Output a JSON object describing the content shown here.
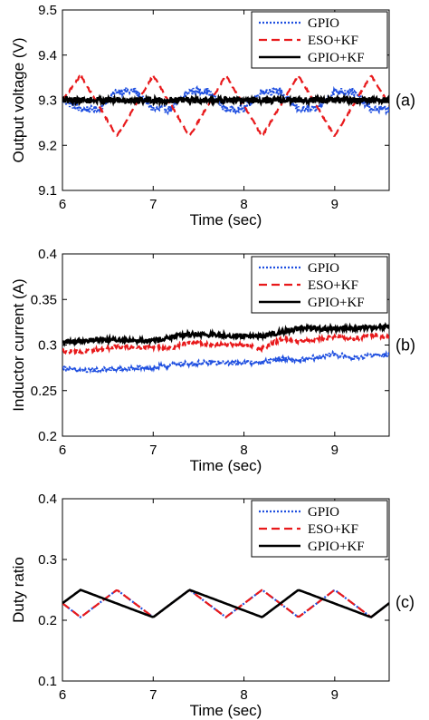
{
  "chart_data": [
    {
      "type": "line",
      "panel_label": "(a)",
      "xlabel": "Time (sec)",
      "ylabel": "Output voltage (V)",
      "xlim": [
        6,
        9.6
      ],
      "ylim": [
        9.1,
        9.5
      ],
      "xticks": [
        "6",
        "7",
        "8",
        "9"
      ],
      "yticks": [
        "9.1",
        "9.2",
        "9.3",
        "9.4",
        "9.5"
      ],
      "legend_position": "top-right",
      "series": [
        {
          "name": "GPIO",
          "color": "#1f4fe0",
          "style": "dotted",
          "x": [
            6.0,
            6.0,
            6.2,
            6.4,
            6.6,
            6.8,
            7.0,
            7.2,
            7.4,
            7.6,
            7.8,
            8.0,
            8.2,
            8.4,
            8.6,
            8.8,
            9.0,
            9.2,
            9.4,
            9.6
          ],
          "y": [
            9.3,
            9.3,
            9.28,
            9.28,
            9.32,
            9.32,
            9.28,
            9.28,
            9.32,
            9.32,
            9.28,
            9.28,
            9.32,
            9.32,
            9.28,
            9.28,
            9.32,
            9.32,
            9.28,
            9.28
          ]
        },
        {
          "name": "ESO+KF",
          "color": "#e8191b",
          "style": "dashed",
          "x": [
            6.0,
            6.2,
            6.6,
            7.0,
            7.4,
            7.8,
            8.2,
            8.6,
            9.0,
            9.4,
            9.6
          ],
          "y": [
            9.3,
            9.355,
            9.22,
            9.355,
            9.22,
            9.355,
            9.22,
            9.355,
            9.22,
            9.355,
            9.29
          ]
        },
        {
          "name": "GPIO+KF",
          "color": "#000000",
          "style": "solid",
          "x": [
            6.0,
            6.6,
            7.2,
            7.8,
            8.4,
            9.0,
            9.6
          ],
          "y": [
            9.3,
            9.3,
            9.3,
            9.3,
            9.3,
            9.3,
            9.3
          ]
        }
      ]
    },
    {
      "type": "line",
      "panel_label": "(b)",
      "xlabel": "Time (sec)",
      "ylabel": "Inductor current (A)",
      "xlim": [
        6,
        9.6
      ],
      "ylim": [
        0.2,
        0.4
      ],
      "xticks": [
        "6",
        "7",
        "8",
        "9"
      ],
      "yticks": [
        "0.2",
        "0.25",
        "0.3",
        "0.35",
        "0.4"
      ],
      "legend_position": "top-right",
      "series": [
        {
          "name": "GPIO",
          "color": "#1f4fe0",
          "style": "dotted",
          "x": [
            6.0,
            6.2,
            7.0,
            7.2,
            7.4,
            8.2,
            8.4,
            8.6,
            9.0,
            9.2,
            9.4,
            9.6
          ],
          "y": [
            0.275,
            0.272,
            0.275,
            0.278,
            0.28,
            0.281,
            0.285,
            0.283,
            0.29,
            0.286,
            0.289,
            0.289
          ]
        },
        {
          "name": "ESO+KF",
          "color": "#e8191b",
          "style": "dashed",
          "x": [
            6.0,
            6.2,
            6.6,
            7.0,
            7.2,
            7.4,
            7.6,
            8.0,
            8.2,
            8.4,
            8.6,
            9.0,
            9.2,
            9.4,
            9.6
          ],
          "y": [
            0.294,
            0.292,
            0.298,
            0.298,
            0.297,
            0.303,
            0.301,
            0.3,
            0.296,
            0.306,
            0.304,
            0.309,
            0.306,
            0.311,
            0.309
          ]
        },
        {
          "name": "GPIO+KF",
          "color": "#000000",
          "style": "solid",
          "x": [
            6.0,
            6.4,
            7.0,
            7.4,
            8.0,
            8.2,
            8.6,
            9.0,
            9.6
          ],
          "y": [
            0.303,
            0.306,
            0.305,
            0.312,
            0.31,
            0.31,
            0.318,
            0.318,
            0.32
          ]
        }
      ]
    },
    {
      "type": "line",
      "panel_label": "(c)",
      "xlabel": "Time (sec)",
      "ylabel": "Duty ratio",
      "xlim": [
        6,
        9.6
      ],
      "ylim": [
        0.1,
        0.4
      ],
      "xticks": [
        "6",
        "7",
        "8",
        "9"
      ],
      "yticks": [
        "0.1",
        "0.2",
        "0.3",
        "0.4"
      ],
      "legend_position": "top-right",
      "series": [
        {
          "name": "GPIO",
          "color": "#1f4fe0",
          "style": "dotted",
          "x": [
            6.0,
            6.2,
            6.6,
            7.0,
            7.4,
            7.8,
            8.2,
            8.6,
            9.0,
            9.4,
            9.6
          ],
          "y": [
            0.228,
            0.205,
            0.25,
            0.205,
            0.25,
            0.205,
            0.25,
            0.205,
            0.25,
            0.205,
            0.228
          ]
        },
        {
          "name": "ESO+KF",
          "color": "#e8191b",
          "style": "dashed",
          "x": [
            6.0,
            6.2,
            6.6,
            7.0,
            7.4,
            7.8,
            8.2,
            8.6,
            9.0,
            9.4,
            9.6
          ],
          "y": [
            0.228,
            0.205,
            0.25,
            0.205,
            0.25,
            0.205,
            0.25,
            0.205,
            0.25,
            0.205,
            0.228
          ]
        },
        {
          "name": "GPIO+KF",
          "color": "#000000",
          "style": "solid",
          "x": [
            6.0,
            6.2,
            7.0,
            7.4,
            8.2,
            8.6,
            9.4,
            9.6
          ],
          "y": [
            0.228,
            0.25,
            0.205,
            0.25,
            0.205,
            0.25,
            0.205,
            0.228
          ]
        }
      ]
    }
  ]
}
